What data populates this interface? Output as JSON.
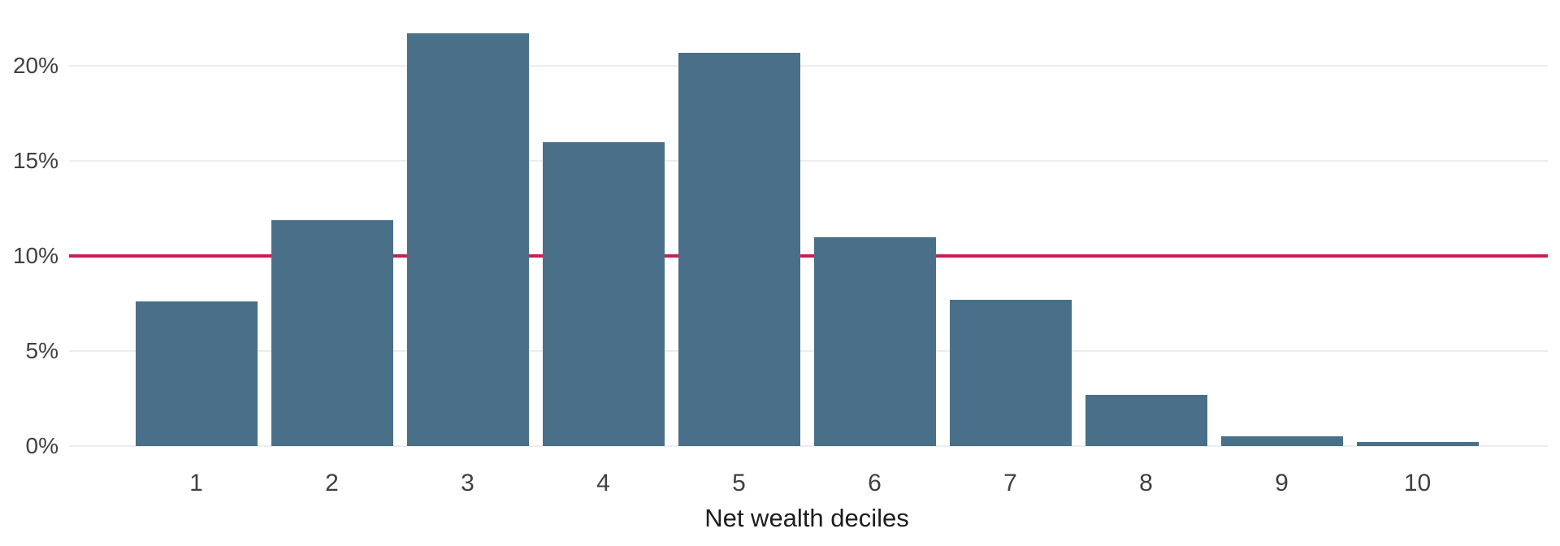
{
  "chart_data": {
    "type": "bar",
    "categories": [
      "1",
      "2",
      "3",
      "4",
      "5",
      "6",
      "7",
      "8",
      "9",
      "10"
    ],
    "values": [
      7.6,
      11.9,
      21.7,
      16.0,
      20.7,
      11.0,
      7.7,
      2.7,
      0.5,
      0.2
    ],
    "title": "",
    "xlabel": "Net wealth deciles",
    "ylabel": "",
    "ylim": [
      0,
      22.5
    ],
    "yticks": [
      0,
      5,
      10,
      15,
      20
    ],
    "ytick_labels": [
      "0%",
      "5%",
      "10%",
      "15%",
      "20%"
    ],
    "grid": true,
    "legend": "none",
    "reference_line": {
      "value": 10
    },
    "colors": {
      "bar": "#4a6f88",
      "reference_line": "#c32058",
      "gridline": "#ededed",
      "tick_text": "#404040",
      "axis_title_text": "#1c1c1c",
      "background": "#ffffff"
    }
  }
}
